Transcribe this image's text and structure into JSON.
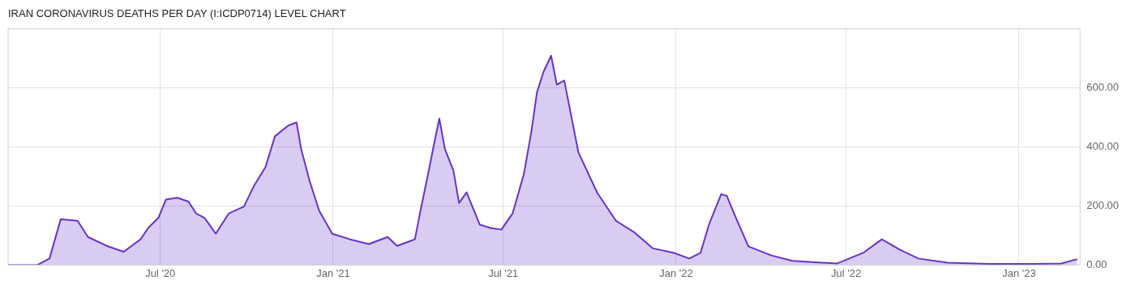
{
  "chart_data": {
    "type": "area",
    "title": "IRAN CORONAVIRUS DEATHS PER DAY (I:ICDP0714) LEVEL CHART",
    "x": [
      "2020-01-21",
      "2020-02-21",
      "2020-03-05",
      "2020-03-17",
      "2020-04-04",
      "2020-04-15",
      "2020-05-05",
      "2020-05-23",
      "2020-06-10",
      "2020-06-18",
      "2020-06-29",
      "2020-07-07",
      "2020-07-19",
      "2020-07-31",
      "2020-08-08",
      "2020-08-17",
      "2020-08-29",
      "2020-09-12",
      "2020-09-28",
      "2020-10-09",
      "2020-10-21",
      "2020-10-31",
      "2020-11-14",
      "2020-11-23",
      "2020-11-28",
      "2020-12-07",
      "2020-12-17",
      "2020-12-31",
      "2021-01-19",
      "2021-02-08",
      "2021-02-28",
      "2021-03-10",
      "2021-03-29",
      "2021-04-04",
      "2021-04-12",
      "2021-04-18",
      "2021-04-24",
      "2021-04-30",
      "2021-05-09",
      "2021-05-15",
      "2021-05-23",
      "2021-06-06",
      "2021-06-18",
      "2021-06-29",
      "2021-07-11",
      "2021-07-23",
      "2021-07-31",
      "2021-08-06",
      "2021-08-13",
      "2021-08-21",
      "2021-08-27",
      "2021-09-04",
      "2021-09-19",
      "2021-10-09",
      "2021-10-29",
      "2021-11-17",
      "2021-12-07",
      "2021-12-30",
      "2022-01-15",
      "2022-01-27",
      "2022-02-05",
      "2022-02-18",
      "2022-02-24",
      "2022-03-07",
      "2022-03-19",
      "2022-04-12",
      "2022-05-05",
      "2022-06-21",
      "2022-07-19",
      "2022-08-08",
      "2022-08-27",
      "2022-09-16",
      "2022-10-17",
      "2022-12-01",
      "2023-01-15",
      "2023-02-15",
      "2023-03-04"
    ],
    "series": [
      {
        "color": "#6633cc",
        "values": [
          0,
          0,
          22,
          155,
          150,
          95,
          65,
          45,
          87,
          125,
          160,
          222,
          228,
          215,
          175,
          160,
          106,
          175,
          198,
          270,
          332,
          436,
          472,
          483,
          392,
          284,
          185,
          106,
          87,
          71,
          95,
          65,
          87,
          185,
          308,
          404,
          496,
          392,
          320,
          210,
          246,
          137,
          125,
          120,
          175,
          308,
          453,
          586,
          655,
          709,
          611,
          625,
          382,
          245,
          150,
          112,
          57,
          41,
          22,
          41,
          137,
          240,
          234,
          150,
          63,
          33,
          14,
          5,
          41,
          87,
          52,
          22,
          8,
          4,
          4,
          5,
          20
        ]
      }
    ],
    "xlim": [
      "2020-01-21",
      "2023-03-07"
    ],
    "xticks": [
      {
        "value": "2020-07-01",
        "label": "Jul '20"
      },
      {
        "value": "2021-01-01",
        "label": "Jan '21"
      },
      {
        "value": "2021-07-01",
        "label": "Jul '21"
      },
      {
        "value": "2022-01-01",
        "label": "Jan '22"
      },
      {
        "value": "2022-07-01",
        "label": "Jul '22"
      },
      {
        "value": "2023-01-01",
        "label": "Jan '23"
      }
    ],
    "ylim": [
      0,
      800
    ],
    "yticks": [
      {
        "value": 0,
        "label": "0.00"
      },
      {
        "value": 200,
        "label": "200.00"
      },
      {
        "value": 400,
        "label": "400.00"
      },
      {
        "value": 600,
        "label": "600.00"
      }
    ],
    "grid": true
  }
}
